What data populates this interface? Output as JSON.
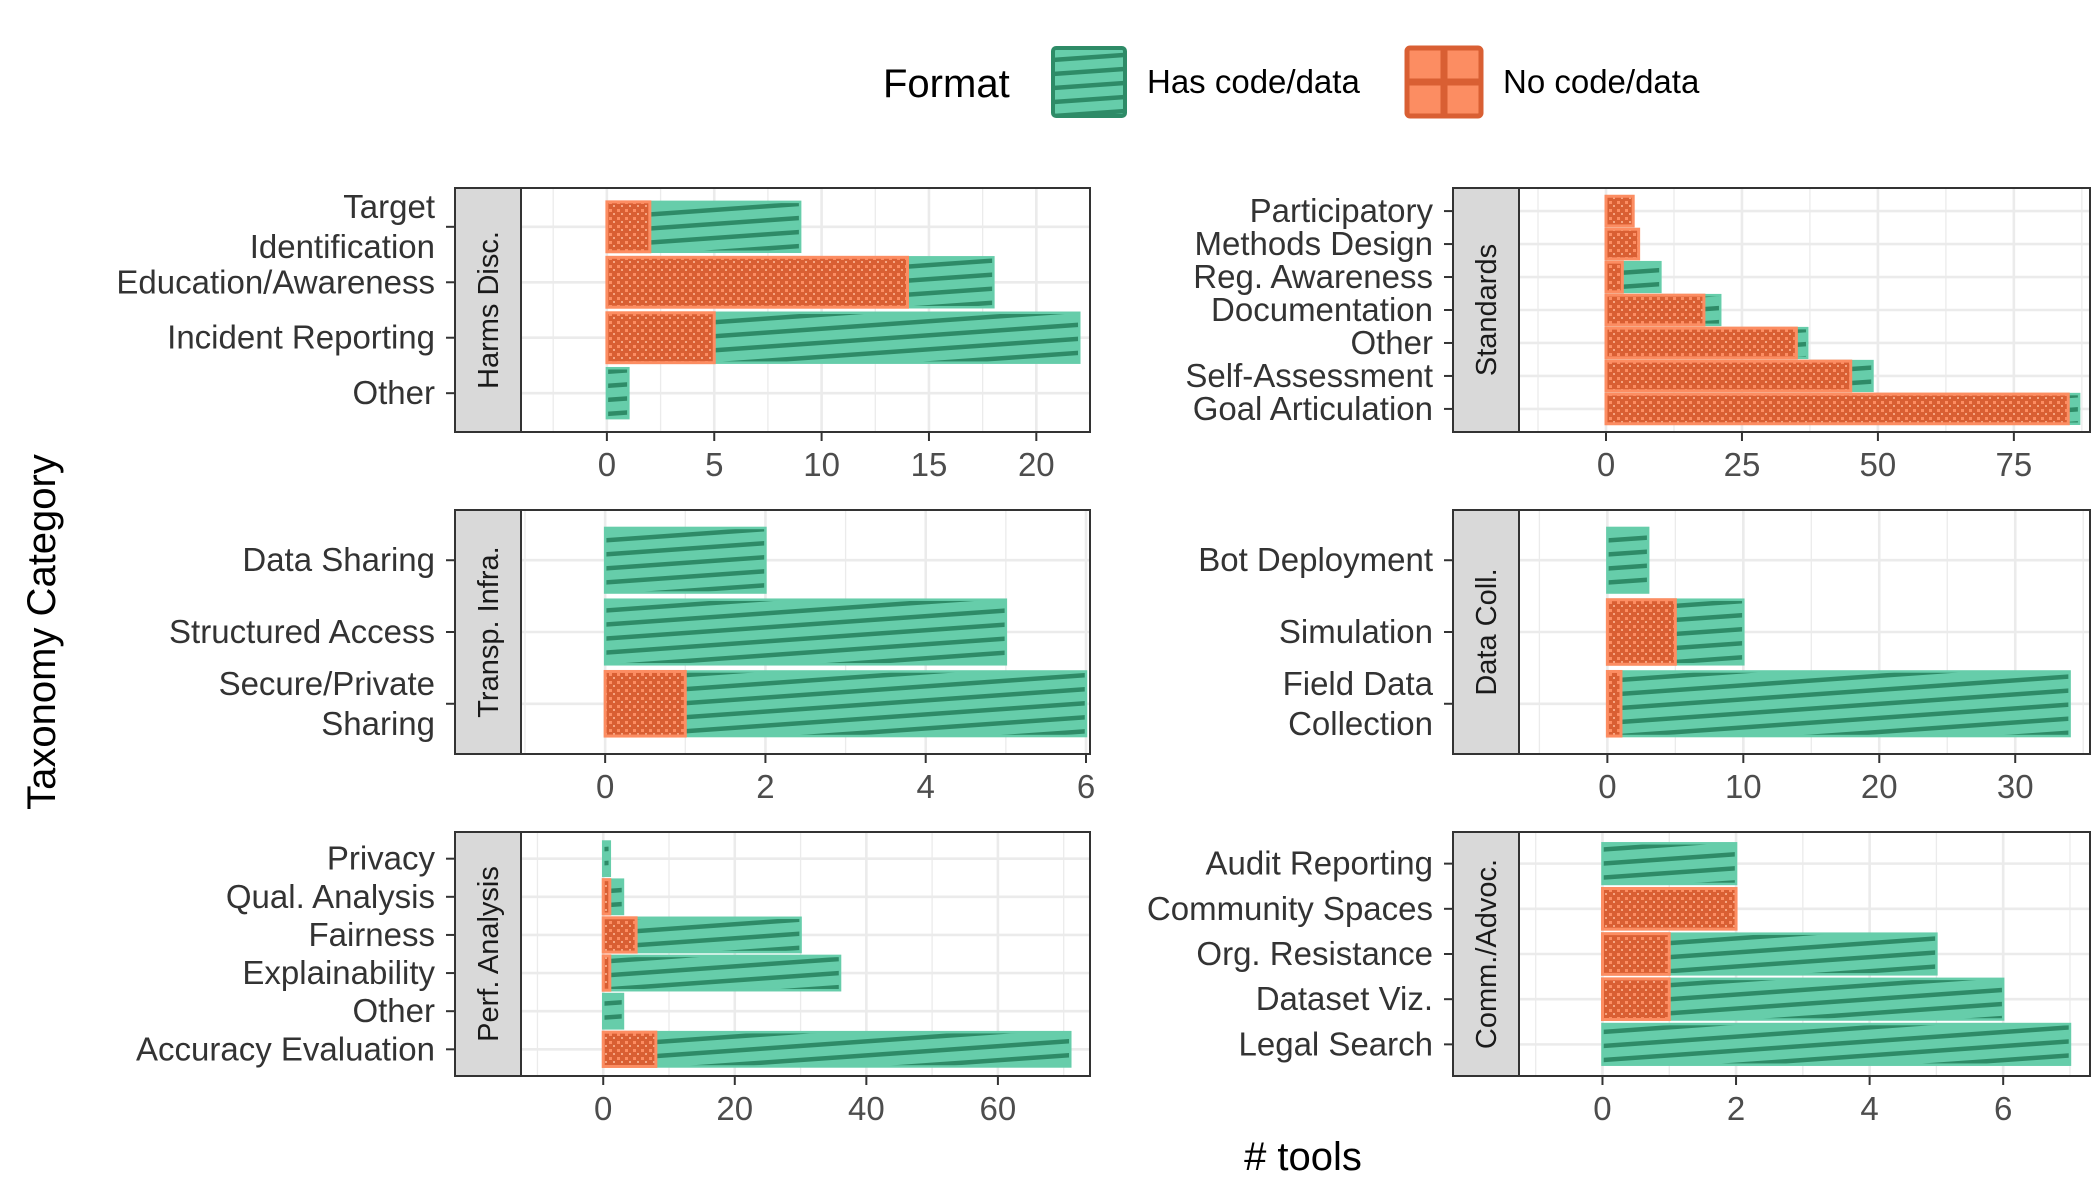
{
  "legend": {
    "title": "Format",
    "items": [
      {
        "key": "has",
        "label": "Has code/data"
      },
      {
        "key": "no",
        "label": "No code/data"
      }
    ]
  },
  "axis_labels": {
    "x": "# tools",
    "y": "Taxonomy Category"
  },
  "colors": {
    "has_fill": "#66cdaa",
    "has_stroke": "#2e8b67",
    "no_fill": "#fc8d62",
    "no_stroke": "#d95f33",
    "strip": "#d9d9d9",
    "grid": "#ebebeb"
  },
  "chart_data": [
    {
      "type": "bar",
      "orientation": "horizontal",
      "stacked": true,
      "facet": "Harms Disc.",
      "categories": [
        "Target\nIdentification",
        "Education/Awareness",
        "Incident Reporting",
        "Other"
      ],
      "series": [
        {
          "name": "No code/data",
          "values": [
            2,
            14,
            5,
            0
          ]
        },
        {
          "name": "Has code/data",
          "values": [
            7,
            4,
            17,
            1
          ]
        }
      ],
      "xticks": [
        0,
        5,
        10,
        15,
        20
      ],
      "xlim": [
        -4,
        22.5
      ]
    },
    {
      "type": "bar",
      "orientation": "horizontal",
      "stacked": true,
      "facet": "Standards",
      "categories": [
        "Participatory",
        "Methods Design",
        "Reg. Awareness",
        "Documentation",
        "Other",
        "Self-Assessment",
        "Goal Articulation"
      ],
      "series": [
        {
          "name": "No code/data",
          "values": [
            5,
            6,
            3,
            18,
            35,
            45,
            85
          ]
        },
        {
          "name": "Has code/data",
          "values": [
            0,
            0,
            7,
            3,
            2,
            4,
            2
          ]
        }
      ],
      "xticks": [
        0,
        25,
        50,
        75
      ],
      "xlim": [
        -16,
        89
      ]
    },
    {
      "type": "bar",
      "orientation": "horizontal",
      "stacked": true,
      "facet": "Transp. Infra.",
      "categories": [
        "Data Sharing",
        "Structured Access",
        "Secure/Private\nSharing"
      ],
      "series": [
        {
          "name": "No code/data",
          "values": [
            0,
            0,
            1
          ]
        },
        {
          "name": "Has code/data",
          "values": [
            2,
            5,
            5
          ]
        }
      ],
      "xticks": [
        0,
        2,
        4,
        6
      ],
      "xlim": [
        -1.05,
        6.05
      ]
    },
    {
      "type": "bar",
      "orientation": "horizontal",
      "stacked": true,
      "facet": "Data Coll.",
      "categories": [
        "Bot Deployment",
        "Simulation",
        "Field Data\nCollection"
      ],
      "series": [
        {
          "name": "No code/data",
          "values": [
            0,
            5,
            1
          ]
        },
        {
          "name": "Has code/data",
          "values": [
            3,
            5,
            33
          ]
        }
      ],
      "xticks": [
        0,
        10,
        20,
        30
      ],
      "xlim": [
        -6.5,
        35.5
      ]
    },
    {
      "type": "bar",
      "orientation": "horizontal",
      "stacked": true,
      "facet": "Perf. Analysis",
      "categories": [
        "Privacy",
        "Qual. Analysis",
        "Fairness",
        "Explainability",
        "Other",
        "Accuracy Evaluation"
      ],
      "series": [
        {
          "name": "No code/data",
          "values": [
            0,
            1,
            5,
            1,
            0,
            8
          ]
        },
        {
          "name": "Has code/data",
          "values": [
            1,
            2,
            25,
            35,
            3,
            63
          ]
        }
      ],
      "xticks": [
        0,
        20,
        40,
        60
      ],
      "xlim": [
        -12.5,
        74
      ]
    },
    {
      "type": "bar",
      "orientation": "horizontal",
      "stacked": true,
      "facet": "Comm./Advoc.",
      "categories": [
        "Audit Reporting",
        "Community Spaces",
        "Org. Resistance",
        "Dataset Viz.",
        "Legal Search"
      ],
      "series": [
        {
          "name": "No code/data",
          "values": [
            0,
            2,
            1,
            1,
            0
          ]
        },
        {
          "name": "Has code/data",
          "values": [
            2,
            0,
            4,
            5,
            7
          ]
        }
      ],
      "xticks": [
        0,
        2,
        4,
        6
      ],
      "xlim": [
        -1.25,
        7.3
      ]
    }
  ]
}
